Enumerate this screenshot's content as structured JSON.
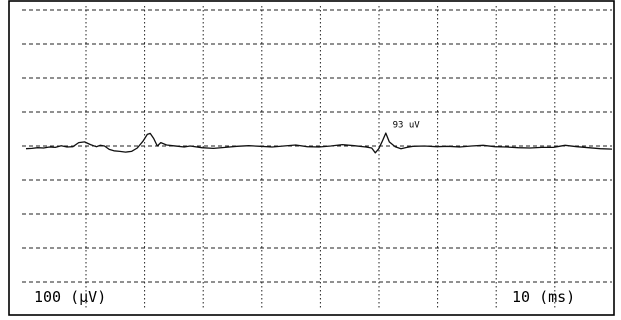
{
  "chart_data": {
    "type": "line",
    "grid": true,
    "x_divisions": 10,
    "y_divisions": 8,
    "scale_labels": {
      "amplitude": "100 (µV)",
      "time": "10 (ms)"
    },
    "annotations": [
      {
        "text": "93 uV",
        "x_ms": 61.2,
        "y_uv": 43
      }
    ],
    "series": [
      {
        "x_ms": [
          0,
          1,
          2,
          3,
          4,
          5,
          6,
          7,
          8,
          9,
          10,
          11,
          12,
          12.7,
          13.4,
          14.2,
          15,
          16,
          17,
          18,
          19,
          20,
          20.7,
          21.2,
          21.8,
          22.4,
          23,
          24,
          25,
          26,
          27,
          28,
          30,
          32,
          34,
          36,
          38,
          40,
          42,
          44,
          46,
          48,
          50,
          52,
          54,
          56,
          58,
          59,
          59.6,
          60.2,
          60.8,
          61.4,
          62,
          63,
          64,
          65,
          66,
          68,
          70,
          72,
          74,
          76,
          78,
          80,
          82,
          84,
          86,
          88,
          89,
          90,
          91,
          92,
          94,
          96,
          98,
          100
        ],
        "y_uv": [
          -8,
          -7,
          -5,
          -6,
          -3,
          -4,
          1,
          -3,
          -2,
          10,
          12,
          4,
          -2,
          2,
          0,
          -10,
          -14,
          -16,
          -18,
          -16,
          -6,
          15,
          34,
          37,
          22,
          0,
          10,
          3,
          1,
          -1,
          -3,
          0,
          -5,
          -7,
          -4,
          -1,
          1,
          -1,
          -3,
          0,
          3,
          -2,
          -3,
          0,
          4,
          1,
          -3,
          -6,
          -20,
          -8,
          14,
          38,
          12,
          -2,
          -8,
          -4,
          -1,
          0,
          -2,
          -1,
          -3,
          0,
          2,
          -2,
          -3,
          -5,
          -6,
          -4,
          -4,
          -4,
          -1,
          2,
          -2,
          -5,
          -8,
          -9
        ]
      }
    ]
  }
}
